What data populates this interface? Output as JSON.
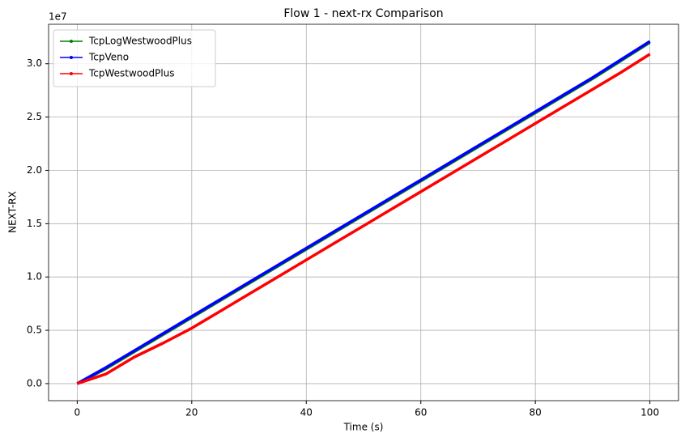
{
  "chart_data": {
    "type": "line",
    "title": "Flow 1 - next-rx Comparison",
    "x_label": "Time (s)",
    "y_label": "NEXT-RX",
    "y_offset_label": "1e7",
    "x": [
      0,
      5,
      10,
      15,
      20,
      25,
      30,
      35,
      40,
      45,
      50,
      55,
      60,
      65,
      70,
      75,
      80,
      85,
      90,
      95,
      100
    ],
    "series": [
      {
        "name": "TcpLogWestwoodPlus",
        "color": "#008000",
        "values": [
          0,
          0.14,
          0.3,
          0.46,
          0.62,
          0.78,
          0.94,
          1.1,
          1.26,
          1.42,
          1.58,
          1.74,
          1.9,
          2.06,
          2.22,
          2.38,
          2.54,
          2.7,
          2.86,
          3.03,
          3.2
        ]
      },
      {
        "name": "TcpVeno",
        "color": "#0000ff",
        "values": [
          0,
          0.15,
          0.31,
          0.47,
          0.63,
          0.79,
          0.95,
          1.11,
          1.27,
          1.43,
          1.59,
          1.75,
          1.91,
          2.07,
          2.23,
          2.39,
          2.55,
          2.71,
          2.87,
          3.04,
          3.21
        ]
      },
      {
        "name": "TcpWestwoodPlus",
        "color": "#ff0000",
        "values": [
          0,
          0.09,
          0.25,
          0.38,
          0.52,
          0.68,
          0.84,
          1.0,
          1.16,
          1.32,
          1.48,
          1.64,
          1.8,
          1.96,
          2.12,
          2.28,
          2.44,
          2.6,
          2.76,
          2.92,
          3.09
        ]
      }
    ],
    "xlim": [
      -5,
      105
    ],
    "xticks": [
      0,
      20,
      40,
      60,
      80,
      100
    ],
    "ylim": [
      -0.16,
      3.37
    ],
    "yticks": [
      {
        "value": 0,
        "label": "0.0"
      },
      0.5,
      {
        "value": 1,
        "label": "1.0"
      },
      1.5,
      {
        "value": 2,
        "label": "2.0"
      },
      2.5,
      {
        "value": 3,
        "label": "3.0"
      }
    ],
    "grid": true,
    "legend": "upper left"
  }
}
